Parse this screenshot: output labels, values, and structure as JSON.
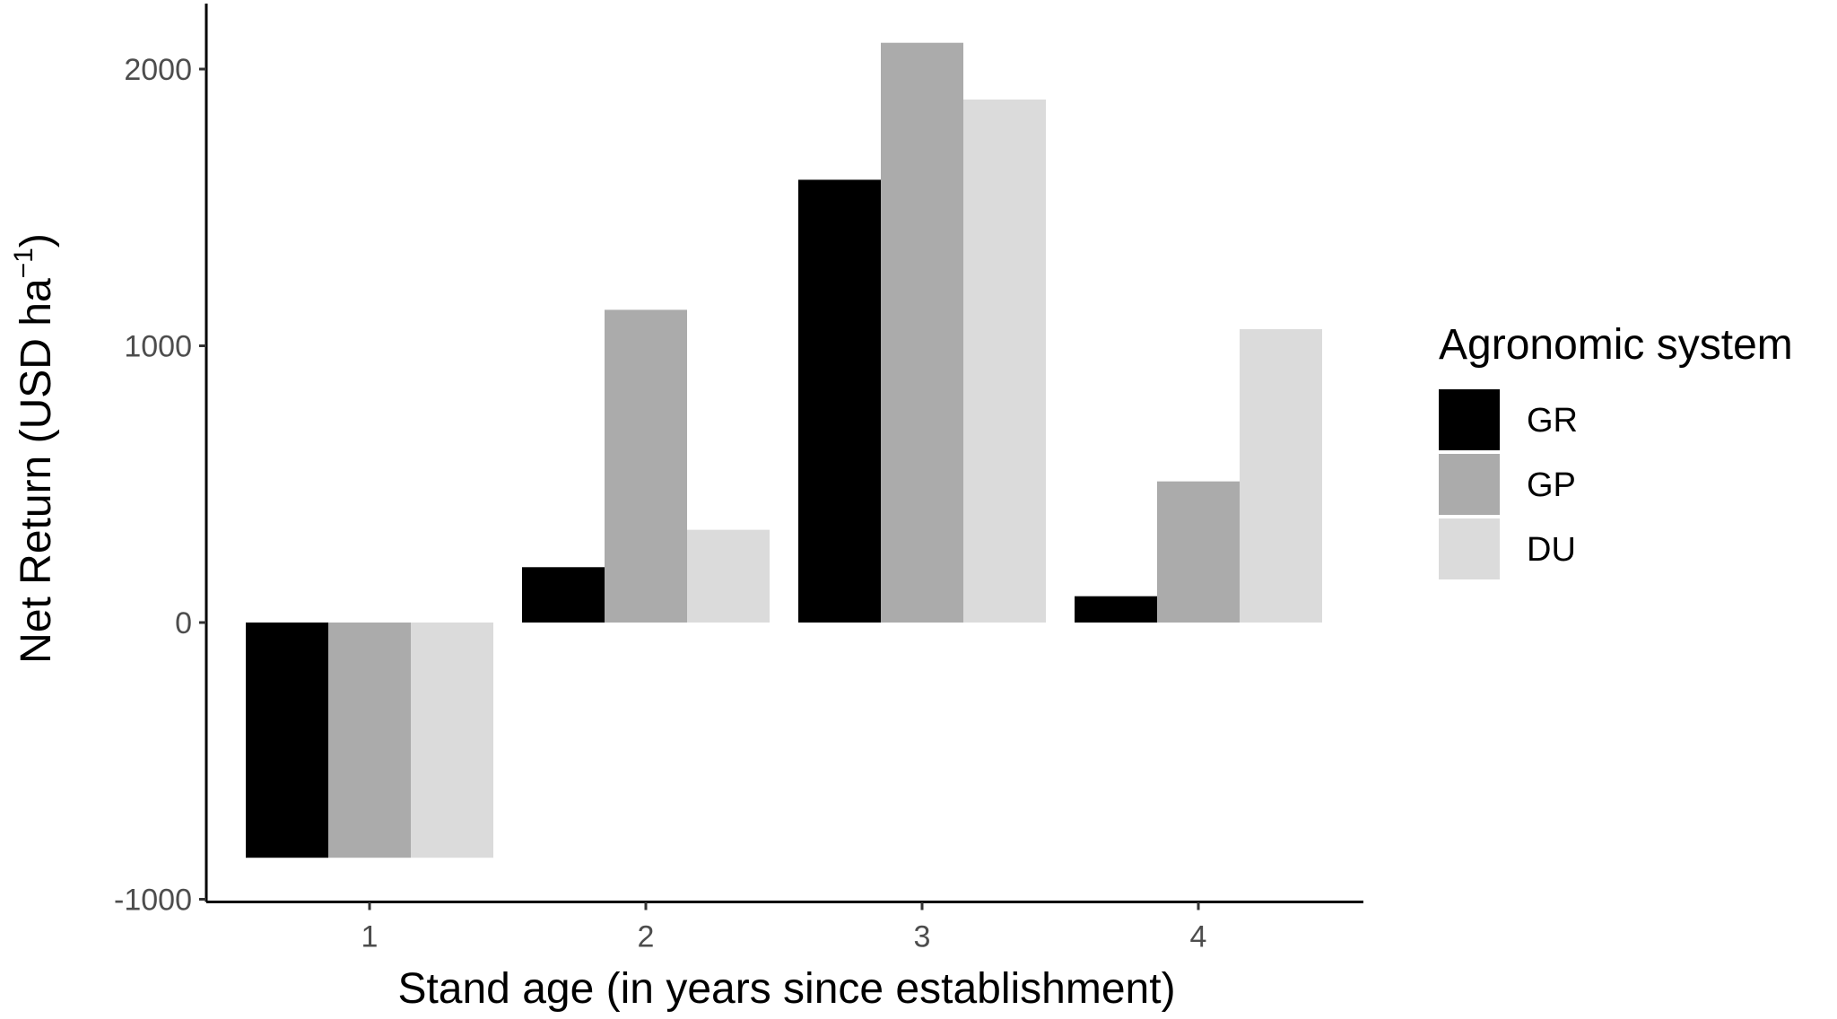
{
  "chart_data": {
    "type": "bar",
    "xlabel": "Stand age (in years since establishment)",
    "ylabel_main": "Net Return (USD ha",
    "ylabel_sup": "−1",
    "ylabel_close": ")",
    "ylim": [
      -1000,
      2200
    ],
    "yticks": [
      -1000,
      0,
      1000,
      2000
    ],
    "ytick_labels": [
      "-1000",
      "0",
      "1000",
      "2000"
    ],
    "categories": [
      "1",
      "2",
      "3",
      "4"
    ],
    "legend_title": "Agronomic system",
    "legend_position": "right",
    "grid": false,
    "series": [
      {
        "name": "GR",
        "color": "#000000",
        "values": [
          -850,
          200,
          1600,
          95
        ]
      },
      {
        "name": "GP",
        "color": "#ababab",
        "values": [
          -850,
          1130,
          2095,
          510
        ]
      },
      {
        "name": "DU",
        "color": "#dbdbdb",
        "values": [
          -850,
          335,
          1890,
          1060
        ]
      }
    ]
  }
}
